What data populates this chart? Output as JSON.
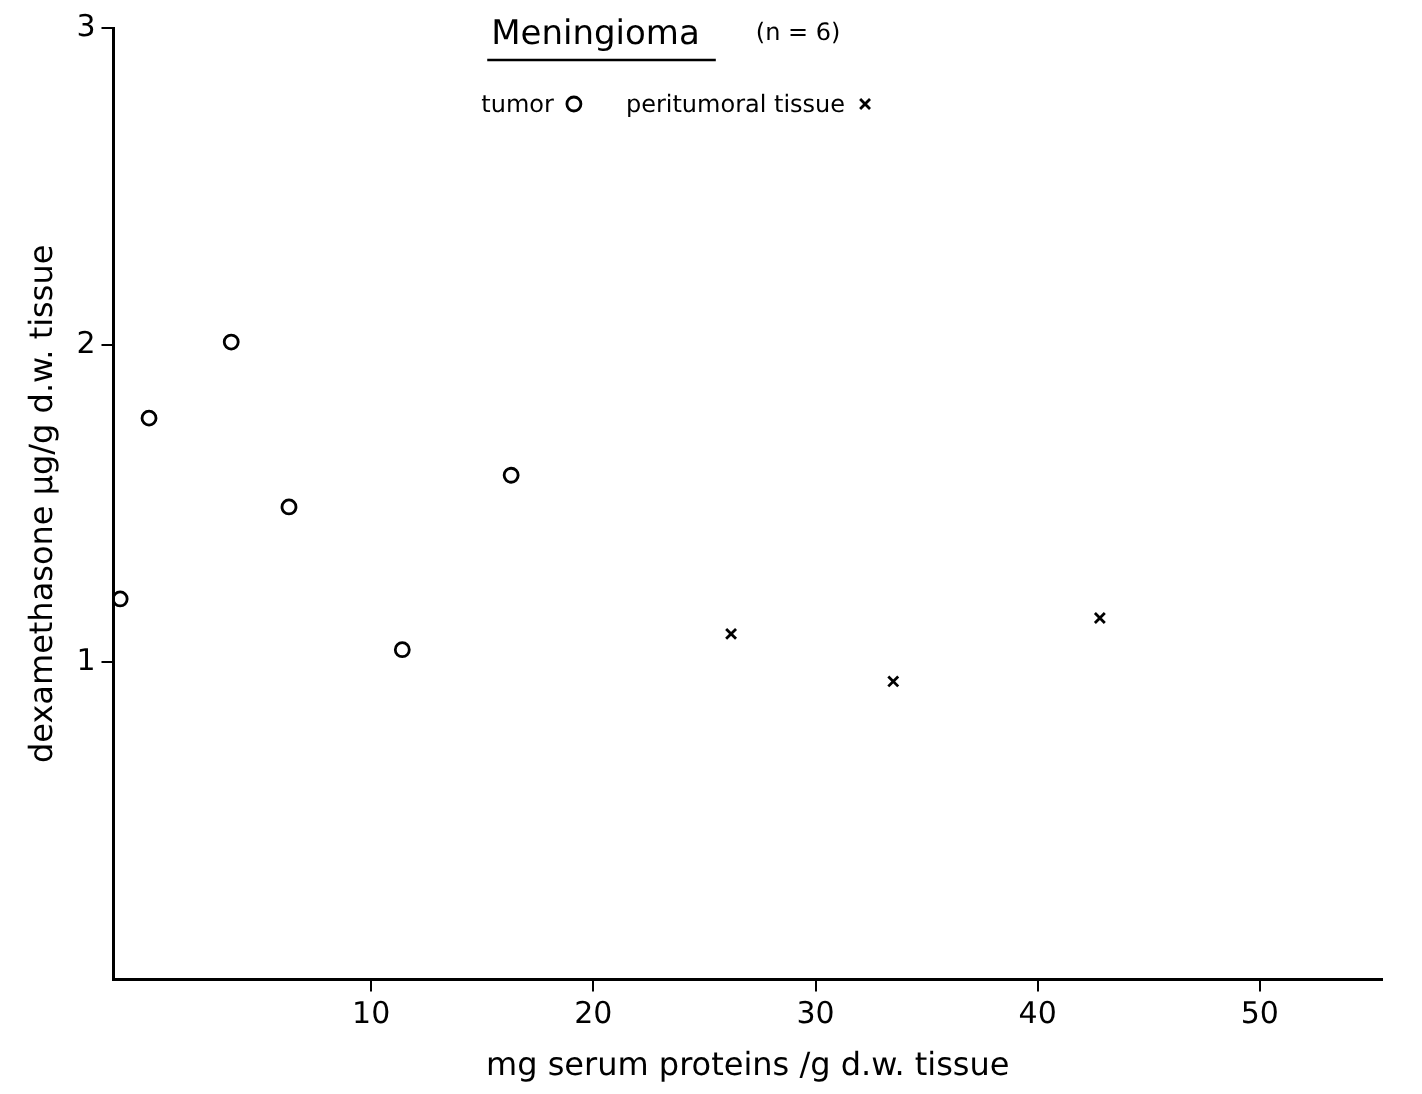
{
  "chart_data": {
    "type": "scatter",
    "title": "Meningioma",
    "subtitle": "(n = 6)",
    "xlabel": "mg serum proteins /g d.w. tissue",
    "ylabel": "dexamethasone µg/g d.w. tissue",
    "xlim": [
      -1.6,
      55.5
    ],
    "xticks": [
      10,
      20,
      30,
      40,
      50
    ],
    "ylim": [
      0,
      3
    ],
    "yticks": [
      1,
      2,
      3
    ],
    "grid": false,
    "legend": "top",
    "series": [
      {
        "name": "tumor",
        "color": "#000000",
        "marker": "circle",
        "x": [
          -1.3,
          0.0,
          3.7,
          6.3,
          11.4,
          16.3
        ],
        "values": [
          1.2,
          1.77,
          2.01,
          1.49,
          1.04,
          1.59
        ]
      },
      {
        "name": "peritumoral tissue",
        "color": "#000000",
        "marker": "cross",
        "x": [
          26.2,
          33.5,
          42.8
        ],
        "values": [
          1.09,
          0.94,
          1.14
        ]
      }
    ]
  }
}
